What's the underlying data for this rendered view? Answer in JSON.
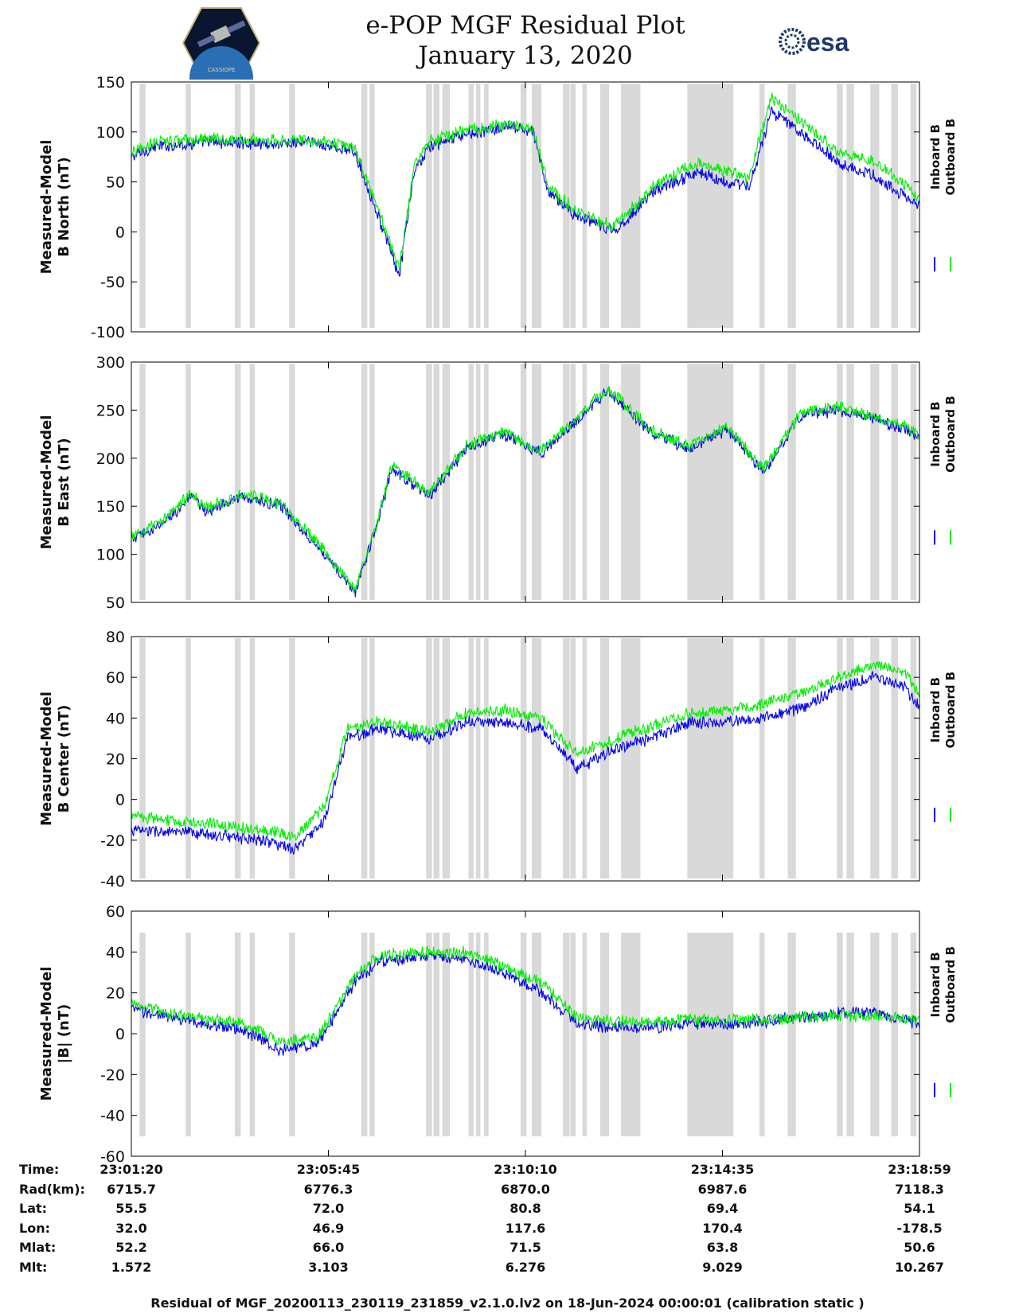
{
  "header": {
    "title_line1": "e-POP MGF Residual Plot",
    "title_line2": "January 13, 2020",
    "logo_left_text": "CASSIOPE",
    "logo_right_text": "esa"
  },
  "colors": {
    "inboard": "#0000ee",
    "outboard": "#00ee00",
    "gap_shade": "#d9d9d9",
    "axis": "#000000"
  },
  "legend": {
    "inboard_label": "Inboard B",
    "outboard_label": "Outboard B"
  },
  "chart_data": [
    {
      "type": "line",
      "ylabel_line1": "Measured-Model",
      "ylabel_line2": "B North (nT)",
      "ylim": [
        -100,
        150
      ],
      "yticks": [
        -100,
        -50,
        0,
        50,
        100,
        150
      ],
      "x_range_s": [
        0,
        1059
      ],
      "series": [
        {
          "name": "Inboard B",
          "anchors": [
            [
              0,
              75
            ],
            [
              30,
              85
            ],
            [
              100,
              90
            ],
            [
              200,
              88
            ],
            [
              240,
              90
            ],
            [
              300,
              80
            ],
            [
              330,
              20
            ],
            [
              360,
              -45
            ],
            [
              380,
              60
            ],
            [
              400,
              85
            ],
            [
              450,
              98
            ],
            [
              510,
              105
            ],
            [
              540,
              100
            ],
            [
              560,
              40
            ],
            [
              600,
              15
            ],
            [
              650,
              0
            ],
            [
              700,
              40
            ],
            [
              760,
              60
            ],
            [
              800,
              50
            ],
            [
              830,
              45
            ],
            [
              860,
              120
            ],
            [
              900,
              100
            ],
            [
              950,
              70
            ],
            [
              1000,
              55
            ],
            [
              1059,
              25
            ]
          ]
        },
        {
          "name": "Outboard B",
          "anchors": [
            [
              0,
              78
            ],
            [
              30,
              90
            ],
            [
              100,
              93
            ],
            [
              200,
              92
            ],
            [
              240,
              92
            ],
            [
              300,
              85
            ],
            [
              330,
              25
            ],
            [
              360,
              -38
            ],
            [
              380,
              66
            ],
            [
              400,
              90
            ],
            [
              450,
              102
            ],
            [
              510,
              108
            ],
            [
              540,
              102
            ],
            [
              560,
              45
            ],
            [
              600,
              20
            ],
            [
              650,
              5
            ],
            [
              700,
              45
            ],
            [
              760,
              70
            ],
            [
              800,
              60
            ],
            [
              830,
              55
            ],
            [
              860,
              135
            ],
            [
              900,
              110
            ],
            [
              950,
              80
            ],
            [
              1000,
              70
            ],
            [
              1059,
              35
            ]
          ]
        }
      ]
    },
    {
      "type": "line",
      "ylabel_line1": "Measured-Model",
      "ylabel_line2": "B East (nT)",
      "ylim": [
        50,
        300
      ],
      "yticks": [
        50,
        100,
        150,
        200,
        250,
        300
      ],
      "x_range_s": [
        0,
        1059
      ],
      "series": [
        {
          "name": "Inboard B",
          "anchors": [
            [
              0,
              115
            ],
            [
              40,
              130
            ],
            [
              80,
              160
            ],
            [
              100,
              145
            ],
            [
              150,
              160
            ],
            [
              200,
              150
            ],
            [
              250,
              110
            ],
            [
              300,
              60
            ],
            [
              330,
              130
            ],
            [
              350,
              190
            ],
            [
              400,
              160
            ],
            [
              450,
              210
            ],
            [
              500,
              225
            ],
            [
              550,
              205
            ],
            [
              600,
              240
            ],
            [
              640,
              270
            ],
            [
              700,
              225
            ],
            [
              750,
              210
            ],
            [
              800,
              230
            ],
            [
              850,
              185
            ],
            [
              900,
              245
            ],
            [
              950,
              250
            ],
            [
              1000,
              240
            ],
            [
              1040,
              230
            ],
            [
              1059,
              220
            ]
          ]
        },
        {
          "name": "Outboard B",
          "anchors": [
            [
              0,
              118
            ],
            [
              40,
              133
            ],
            [
              80,
              163
            ],
            [
              100,
              148
            ],
            [
              150,
              163
            ],
            [
              200,
              153
            ],
            [
              250,
              113
            ],
            [
              300,
              63
            ],
            [
              330,
              133
            ],
            [
              350,
              193
            ],
            [
              400,
              163
            ],
            [
              450,
              213
            ],
            [
              500,
              228
            ],
            [
              550,
              208
            ],
            [
              600,
              243
            ],
            [
              640,
              273
            ],
            [
              700,
              228
            ],
            [
              750,
              213
            ],
            [
              800,
              233
            ],
            [
              850,
              188
            ],
            [
              900,
              248
            ],
            [
              950,
              253
            ],
            [
              1000,
              243
            ],
            [
              1040,
              233
            ],
            [
              1059,
              223
            ]
          ]
        }
      ]
    },
    {
      "type": "line",
      "ylabel_line1": "Measured-Model",
      "ylabel_line2": "B Center (nT)",
      "ylim": [
        -40,
        80
      ],
      "yticks": [
        -40,
        -20,
        0,
        20,
        40,
        60,
        80
      ],
      "x_range_s": [
        0,
        1059
      ],
      "series": [
        {
          "name": "Inboard B",
          "anchors": [
            [
              0,
              -15
            ],
            [
              100,
              -17
            ],
            [
              180,
              -20
            ],
            [
              220,
              -25
            ],
            [
              260,
              -10
            ],
            [
              290,
              30
            ],
            [
              330,
              35
            ],
            [
              400,
              30
            ],
            [
              450,
              38
            ],
            [
              500,
              38
            ],
            [
              550,
              35
            ],
            [
              600,
              15
            ],
            [
              650,
              25
            ],
            [
              700,
              30
            ],
            [
              750,
              38
            ],
            [
              800,
              38
            ],
            [
              850,
              40
            ],
            [
              900,
              45
            ],
            [
              950,
              55
            ],
            [
              1000,
              60
            ],
            [
              1040,
              55
            ],
            [
              1059,
              45
            ]
          ]
        },
        {
          "name": "Outboard B",
          "anchors": [
            [
              0,
              -8
            ],
            [
              100,
              -12
            ],
            [
              180,
              -15
            ],
            [
              220,
              -18
            ],
            [
              260,
              -3
            ],
            [
              290,
              35
            ],
            [
              330,
              38
            ],
            [
              400,
              33
            ],
            [
              450,
              42
            ],
            [
              500,
              44
            ],
            [
              550,
              40
            ],
            [
              600,
              22
            ],
            [
              650,
              30
            ],
            [
              700,
              36
            ],
            [
              750,
              42
            ],
            [
              800,
              44
            ],
            [
              850,
              47
            ],
            [
              900,
              52
            ],
            [
              950,
              60
            ],
            [
              1000,
              66
            ],
            [
              1040,
              62
            ],
            [
              1059,
              52
            ]
          ]
        }
      ]
    },
    {
      "type": "line",
      "ylabel_line1": "Measured-Model",
      "ylabel_line2": "|B| (nT)",
      "ylim": [
        -60,
        60
      ],
      "yticks": [
        -60,
        -40,
        -20,
        0,
        20,
        40,
        60
      ],
      "x_range_s": [
        0,
        1059
      ],
      "series": [
        {
          "name": "Inboard B",
          "anchors": [
            [
              0,
              12
            ],
            [
              50,
              8
            ],
            [
              100,
              5
            ],
            [
              150,
              2
            ],
            [
              200,
              -8
            ],
            [
              250,
              -5
            ],
            [
              300,
              25
            ],
            [
              330,
              35
            ],
            [
              400,
              38
            ],
            [
              450,
              36
            ],
            [
              500,
              30
            ],
            [
              550,
              20
            ],
            [
              600,
              5
            ],
            [
              650,
              3
            ],
            [
              700,
              3
            ],
            [
              750,
              5
            ],
            [
              800,
              5
            ],
            [
              850,
              6
            ],
            [
              900,
              8
            ],
            [
              950,
              10
            ],
            [
              1000,
              10
            ],
            [
              1059,
              5
            ]
          ]
        },
        {
          "name": "Outboard B",
          "anchors": [
            [
              0,
              15
            ],
            [
              50,
              10
            ],
            [
              100,
              7
            ],
            [
              150,
              5
            ],
            [
              200,
              -4
            ],
            [
              250,
              -2
            ],
            [
              300,
              28
            ],
            [
              330,
              38
            ],
            [
              400,
              40
            ],
            [
              450,
              40
            ],
            [
              500,
              33
            ],
            [
              550,
              25
            ],
            [
              600,
              8
            ],
            [
              650,
              6
            ],
            [
              700,
              6
            ],
            [
              750,
              7
            ],
            [
              800,
              7
            ],
            [
              850,
              7
            ],
            [
              900,
              8
            ],
            [
              950,
              9
            ],
            [
              1000,
              9
            ],
            [
              1059,
              6
            ]
          ]
        }
      ]
    }
  ],
  "gap_intervals_s": [
    [
      11,
      19
    ],
    [
      73,
      80
    ],
    [
      139,
      147
    ],
    [
      159,
      166
    ],
    [
      212,
      220
    ],
    [
      309,
      317
    ],
    [
      320,
      327
    ],
    [
      396,
      404
    ],
    [
      406,
      414
    ],
    [
      418,
      428
    ],
    [
      453,
      460
    ],
    [
      463,
      469
    ],
    [
      474,
      480
    ],
    [
      523,
      531
    ],
    [
      538,
      551
    ],
    [
      580,
      589
    ],
    [
      590,
      597
    ],
    [
      606,
      612
    ],
    [
      630,
      642
    ],
    [
      658,
      684
    ],
    [
      747,
      809
    ],
    [
      844,
      851
    ],
    [
      882,
      893
    ],
    [
      948,
      956
    ],
    [
      961,
      971
    ],
    [
      993,
      1005
    ],
    [
      1021,
      1030
    ],
    [
      1047,
      1055
    ]
  ],
  "x_ticks": [
    "23:01:20",
    "23:05:45",
    "23:10:10",
    "23:14:35",
    "23:18:59"
  ],
  "orbit_table": {
    "rows": [
      {
        "label": "Time:",
        "values": [
          "23:01:20",
          "23:05:45",
          "23:10:10",
          "23:14:35",
          "23:18:59"
        ]
      },
      {
        "label": "Rad(km):",
        "values": [
          "6715.7",
          "6776.3",
          "6870.0",
          "6987.6",
          "7118.3"
        ]
      },
      {
        "label": "Lat:",
        "values": [
          "55.5",
          "72.0",
          "80.8",
          "69.4",
          "54.1"
        ]
      },
      {
        "label": "Lon:",
        "values": [
          "32.0",
          "46.9",
          "117.6",
          "170.4",
          "-178.5"
        ]
      },
      {
        "label": "Mlat:",
        "values": [
          "52.2",
          "66.0",
          "71.5",
          "63.8",
          "50.6"
        ]
      },
      {
        "label": "Mlt:",
        "values": [
          "1.572",
          "3.103",
          "6.276",
          "9.029",
          "10.267"
        ]
      }
    ]
  },
  "footer": "Residual of MGF_20200113_230119_231859_v2.1.0.lv2 on 18-Jun-2024 00:00:01 (calibration static )"
}
